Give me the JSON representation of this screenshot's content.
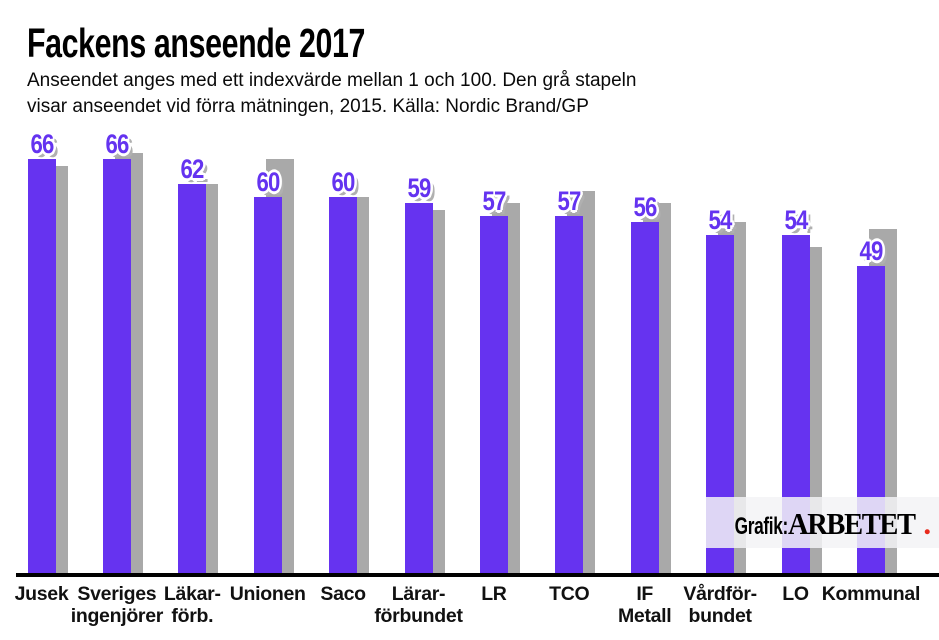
{
  "header": {
    "title": "Fackens anseende 2017",
    "subtitle_line1": "Anseendet anges med ett indexvärde mellan 1 och 100. Den grå stapeln",
    "subtitle_line2": "visar anseendet vid förra mätningen, 2015. Källa: Nordic Brand/GP"
  },
  "credit": {
    "prefix": "Grafik:",
    "brand": "ARBETET",
    "dot": "."
  },
  "colors": {
    "bar_2017": "#6633f0",
    "bar_2015": "#a9a9a9",
    "value_label": "#6433f0",
    "axis": "#000000",
    "credit_dot": "#e82a1c"
  },
  "chart_data": {
    "type": "bar",
    "title": "Fackens anseende 2017",
    "source": "Nordic Brand/GP",
    "value_range": [
      1,
      100
    ],
    "categories": [
      [
        "Jusek"
      ],
      [
        "Sveriges",
        "ingenjörer"
      ],
      [
        "Läkar-",
        "förb."
      ],
      [
        "Unionen"
      ],
      [
        "Saco"
      ],
      [
        "Lärar-",
        "förbundet"
      ],
      [
        "LR"
      ],
      [
        "TCO"
      ],
      [
        "IF",
        "Metall"
      ],
      [
        "Vårdför-",
        "bundet"
      ],
      [
        "LO"
      ],
      [
        "Kommunal"
      ]
    ],
    "series": [
      {
        "name": "2017",
        "values": [
          66,
          66,
          62,
          60,
          60,
          59,
          57,
          57,
          56,
          54,
          54,
          49
        ]
      },
      {
        "name": "2015",
        "values": [
          65,
          67,
          62,
          66,
          60,
          58,
          59,
          61,
          59,
          56,
          52,
          55
        ]
      }
    ],
    "value_labels_shown_for": "2017",
    "legend": "none",
    "grid": false
  }
}
